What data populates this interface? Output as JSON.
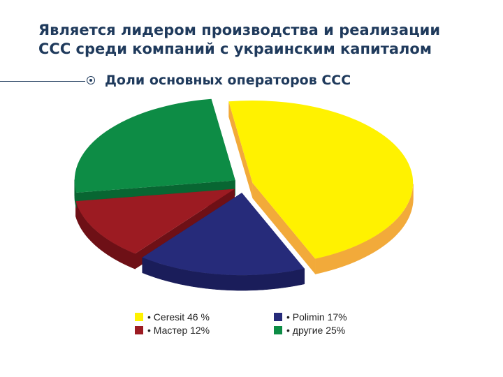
{
  "heading": {
    "line1": "Является лидером производства и реализации",
    "line2": "ССС среди компаний с украинским капиталом"
  },
  "subtitle": "Доли основных операторов ССС",
  "colors": {
    "text": "#1f3a5c"
  },
  "chart_data": {
    "type": "pie",
    "title": "",
    "slices": [
      {
        "name": "Ceresit",
        "value": 46,
        "color": "#fff200",
        "side": "#f2aa3a",
        "legend": "• Ceresit 46 %"
      },
      {
        "name": "Polimin",
        "value": 17,
        "color": "#262b7a",
        "side": "#1a1d5a",
        "legend": "• Polimin 17%"
      },
      {
        "name": "Мастер",
        "value": 12,
        "color": "#9c1b22",
        "side": "#6e1016",
        "legend": "• Мастер 12%"
      },
      {
        "name": "другие",
        "value": 25,
        "color": "#0d8c45",
        "side": "#086632",
        "legend": "• другие 25%"
      }
    ],
    "legend_position": "bottom",
    "style": "3d-exploded"
  }
}
